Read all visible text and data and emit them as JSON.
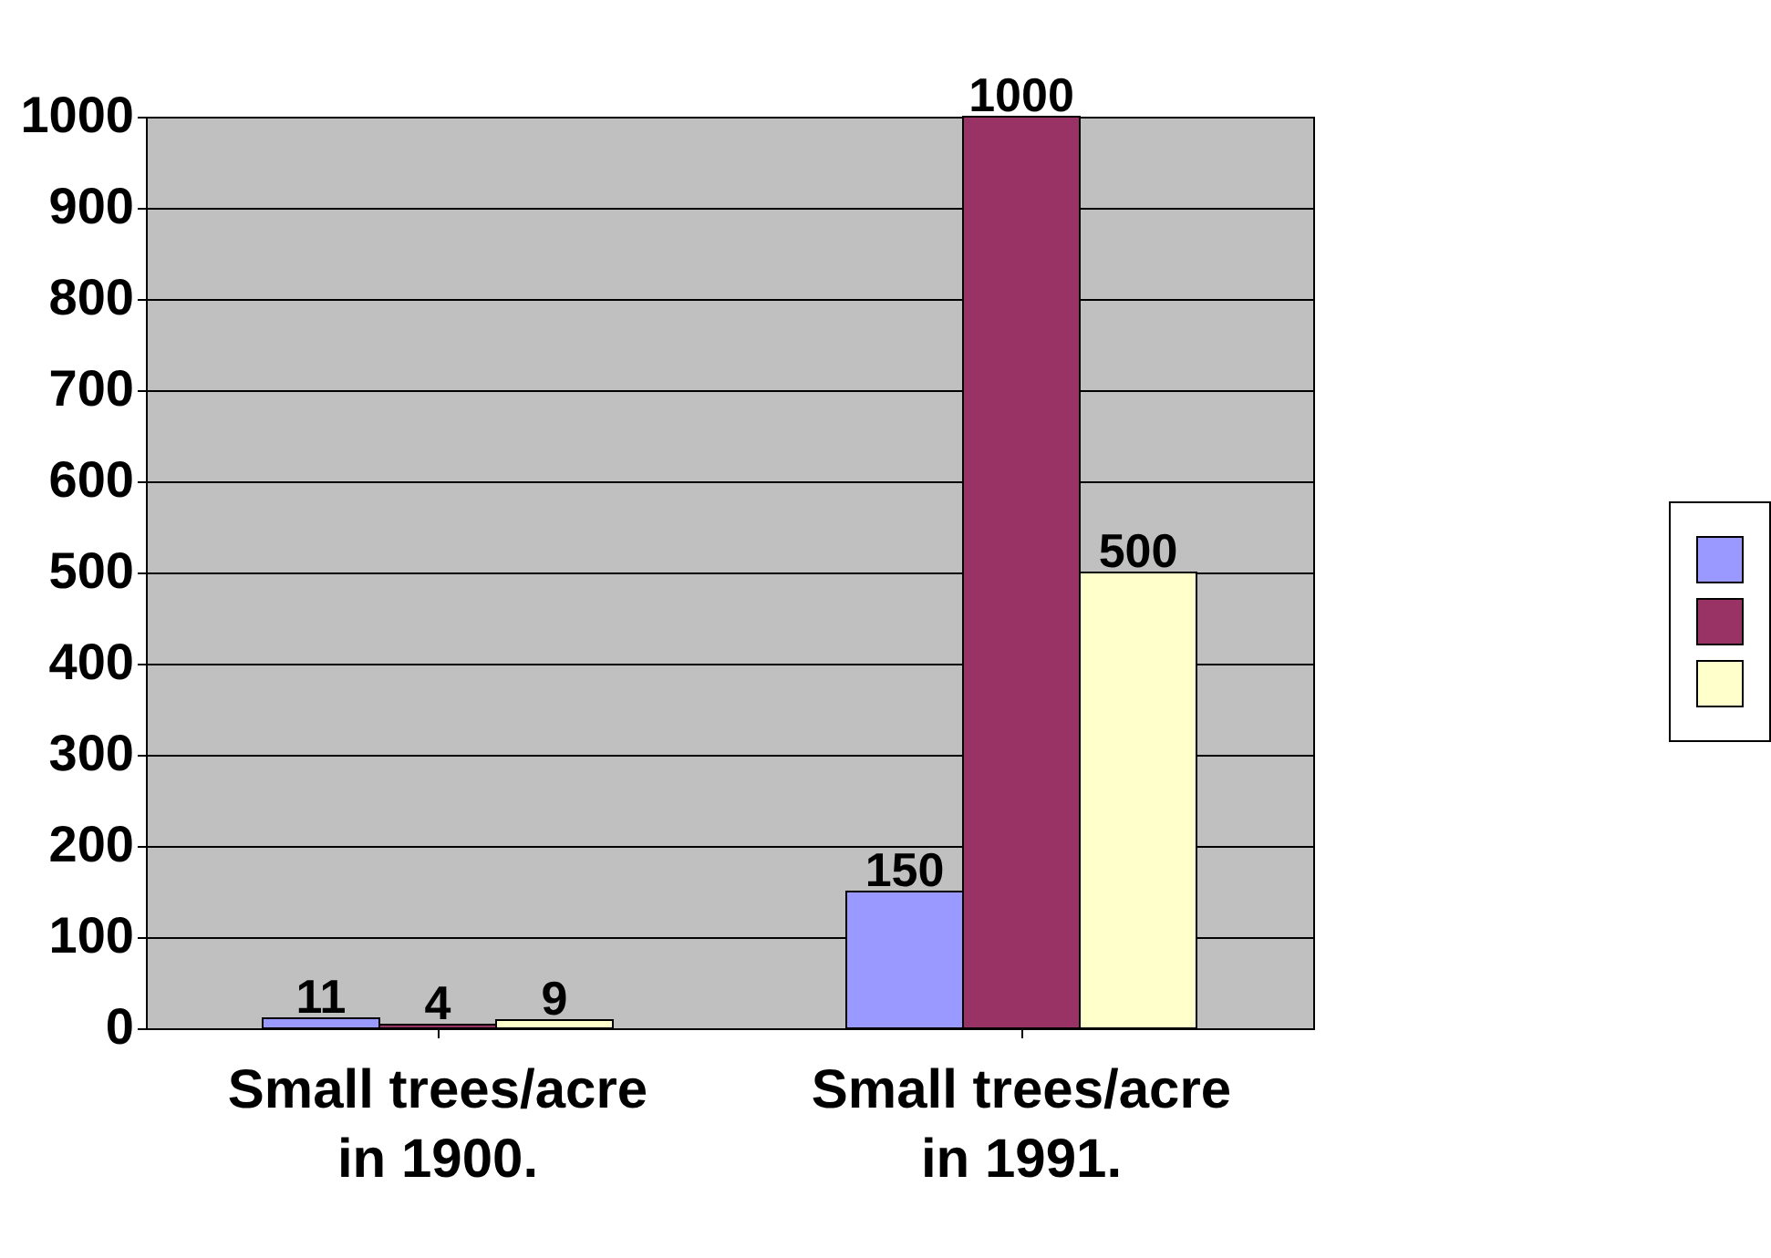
{
  "chart_data": {
    "type": "bar",
    "categories": [
      "Small trees/acre\nin 1900.",
      "Small trees/acre\nin 1991."
    ],
    "series": [
      {
        "color": "#9999ff",
        "values": [
          11,
          150
        ]
      },
      {
        "color": "#993366",
        "values": [
          4,
          1000
        ]
      },
      {
        "color": "#ffffcc",
        "values": [
          9,
          500
        ]
      }
    ],
    "ylim": [
      0,
      1000
    ],
    "yticks": [
      0,
      100,
      200,
      300,
      400,
      500,
      600,
      700,
      800,
      900,
      1000
    ],
    "grid": "y",
    "data_labels": true
  }
}
